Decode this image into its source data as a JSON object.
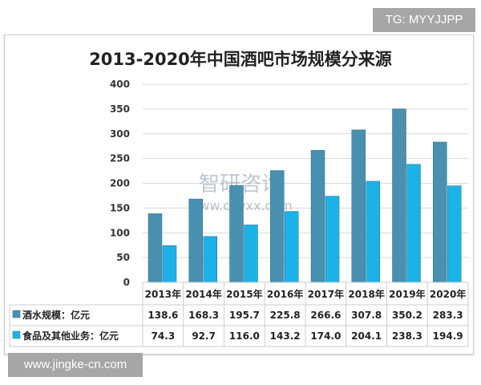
{
  "badges": {
    "tg": "TG: MYYJJPP",
    "site": "www.jingke-cn.com"
  },
  "watermark": {
    "brand": "智研咨询",
    "url": "www.chyxx.com"
  },
  "chart_data": {
    "type": "bar",
    "title": "2013-2020年中国酒吧市场规模分来源",
    "categories": [
      "2013年",
      "2014年",
      "2015年",
      "2016年",
      "2017年",
      "2018年",
      "2019年",
      "2020年"
    ],
    "series": [
      {
        "name": "酒水规模：亿元",
        "color": "#4a90b0",
        "values": [
          138.6,
          168.3,
          195.7,
          225.8,
          266.6,
          307.8,
          350.2,
          283.3
        ],
        "labels": [
          "138.6",
          "168.3",
          "195.7",
          "225.8",
          "266.6",
          "307.8",
          "350.2",
          "283.3"
        ]
      },
      {
        "name": "食品及其他业务：亿元",
        "color": "#1cb2e8",
        "values": [
          74.3,
          92.7,
          116.0,
          143.2,
          174.0,
          204.1,
          238.3,
          194.9
        ],
        "labels": [
          "74.3",
          "92.7",
          "116.0",
          "143.2",
          "174.0",
          "204.1",
          "238.3",
          "194.9"
        ]
      }
    ],
    "ylim": [
      0,
      400
    ],
    "yticks": [
      "0",
      "50",
      "100",
      "150",
      "200",
      "250",
      "300",
      "350",
      "400"
    ],
    "grid": true,
    "legend": "data-table"
  }
}
